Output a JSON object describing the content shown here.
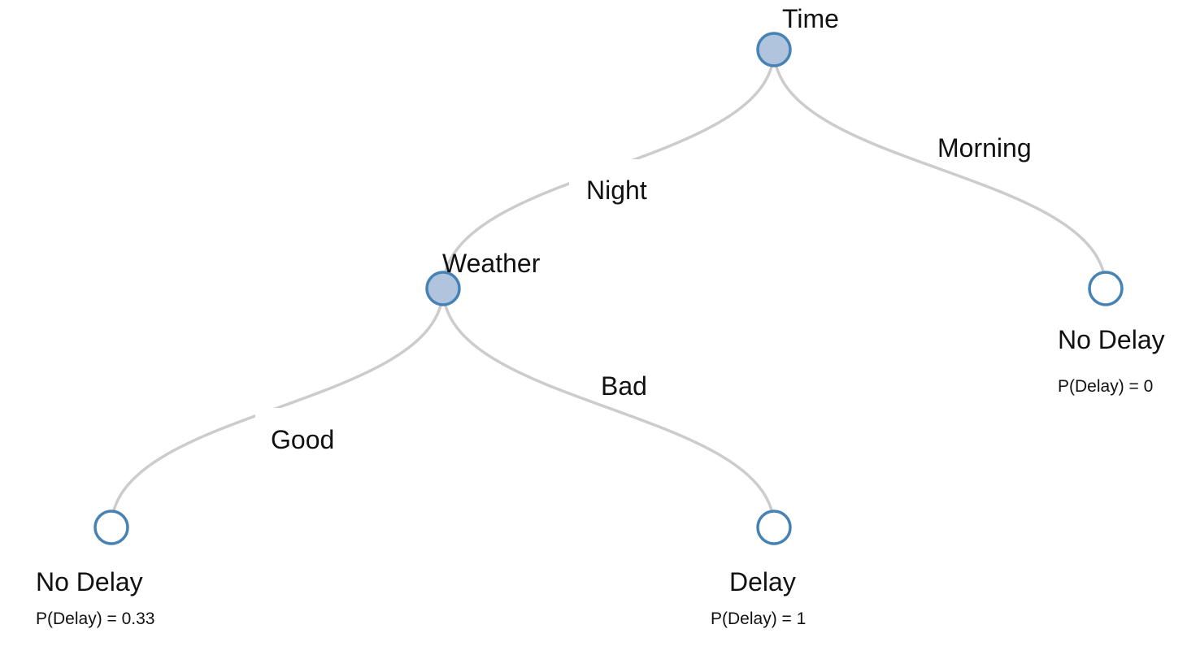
{
  "tree": {
    "nodes": [
      {
        "id": "time",
        "label": "Time",
        "kind": "internal"
      },
      {
        "id": "weather",
        "label": "Weather",
        "kind": "internal"
      },
      {
        "id": "leaf-morning",
        "label": "No Delay",
        "kind": "leaf",
        "probability": "P(Delay) = 0"
      },
      {
        "id": "leaf-good",
        "label": "No Delay",
        "kind": "leaf",
        "probability": "P(Delay) = 0.33"
      },
      {
        "id": "leaf-bad",
        "label": "Delay",
        "kind": "leaf",
        "probability": "P(Delay) = 1"
      }
    ],
    "edges": [
      {
        "from": "time",
        "to": "weather",
        "label": "Night"
      },
      {
        "from": "time",
        "to": "leaf-morning",
        "label": "Morning"
      },
      {
        "from": "weather",
        "to": "leaf-good",
        "label": "Good"
      },
      {
        "from": "weather",
        "to": "leaf-bad",
        "label": "Bad"
      }
    ]
  },
  "colors": {
    "internal_fill": "#b0c4de",
    "node_stroke": "#4682b4",
    "leaf_fill": "#ffffff",
    "link": "#cccccc",
    "text": "#111111"
  }
}
